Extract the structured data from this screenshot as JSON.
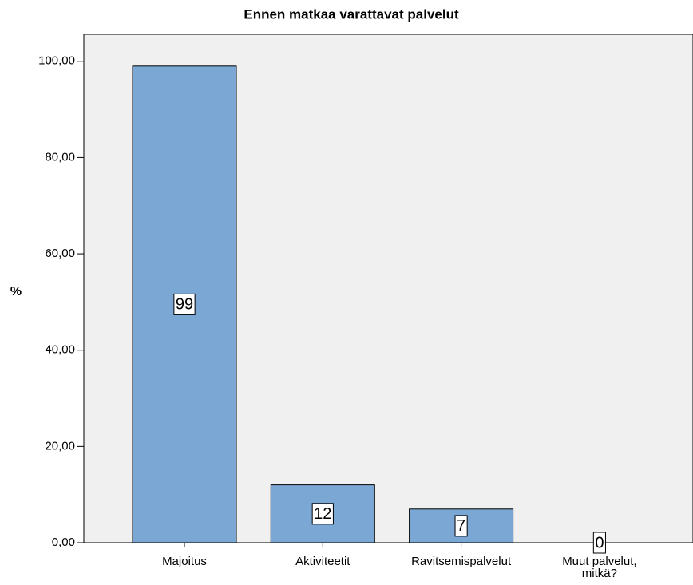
{
  "chart_data": {
    "type": "bar",
    "title": "Ennen matkaa varattavat palvelut",
    "y_label": "%",
    "categories": [
      "Majoitus",
      "Aktiviteetit",
      "Ravitsemispalvelut",
      "Muut palvelut, mitkä?"
    ],
    "values": [
      99,
      12,
      7,
      0
    ],
    "color": "#7ba7d5",
    "ylim": [
      0,
      105.6
    ],
    "yticks": [
      {
        "value": 0,
        "label": "0,00"
      },
      {
        "value": 20,
        "label": "20,00"
      },
      {
        "value": 40,
        "label": "40,00"
      },
      {
        "value": 60,
        "label": "60,00"
      },
      {
        "value": 80,
        "label": "80,00"
      },
      {
        "value": 100,
        "label": "100,00"
      }
    ],
    "grid": false
  }
}
